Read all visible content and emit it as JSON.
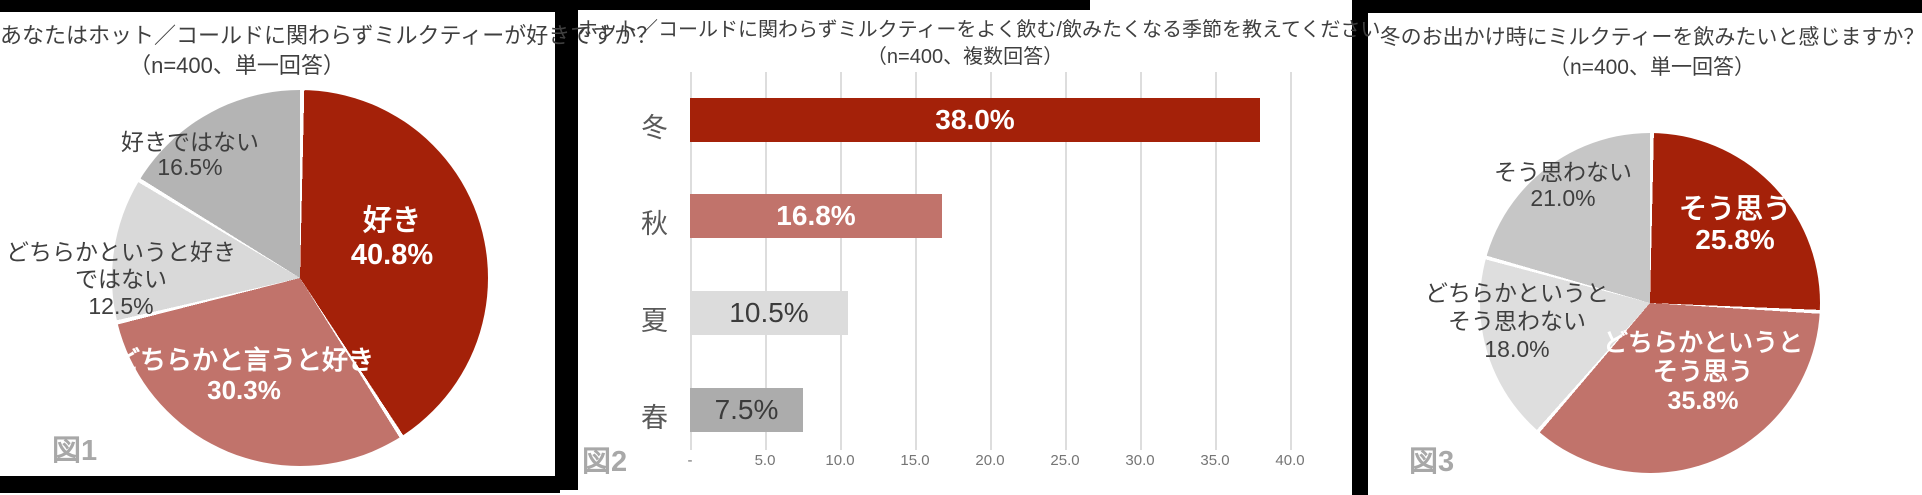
{
  "page": {
    "background": "#FFFFFF",
    "frame_color": "#000000"
  },
  "colors": {
    "dark_red": "#A42109",
    "salmon": "#C1736B",
    "light_gray": "#D9D9D9",
    "mid_gray": "#B4B4B4",
    "title_text": "#3F3F3F",
    "axis_text": "#757575",
    "figure_label_gray": "#A8A8A8",
    "separator": "#FFFFFF"
  },
  "chart_data": [
    {
      "type": "pie",
      "title": "あなたはホット／コールドに関わらずミルクティーが好きですか？",
      "subtitle": "（n=400、単一回答）",
      "figure_label": "図1",
      "start_angle": "12-oclock",
      "direction": "clockwise",
      "slices": [
        {
          "label": "好き",
          "value": 40.8,
          "text": "40.8%",
          "color": "#A42109",
          "label_color": "#FFFFFF"
        },
        {
          "label": "どちらかと言うと好き",
          "value": 30.3,
          "text": "30.3%",
          "color": "#C1736B",
          "label_color": "#FFFFFF"
        },
        {
          "label": "どちらかというと好きではない",
          "value": 12.5,
          "text": "12.5%",
          "color": "#D9D9D9",
          "label_color": "#3F3F3F"
        },
        {
          "label": "好きではない",
          "value": 16.5,
          "text": "16.5%",
          "color": "#B4B4B4",
          "label_color": "#3F3F3F"
        }
      ]
    },
    {
      "type": "bar",
      "orientation": "horizontal",
      "title": "ホット／コールドに関わらずミルクティーをよく飲む/飲みたくなる季節を教えてください",
      "subtitle": "（n=400、複数回答）",
      "figure_label": "図2",
      "xlim": [
        0,
        40
      ],
      "grid": true,
      "x_ticks": [
        "-",
        "5.0",
        "10.0",
        "15.0",
        "20.0",
        "25.0",
        "30.0",
        "35.0",
        "40.0"
      ],
      "slices": [
        {
          "category": "冬",
          "value": 38.0,
          "text": "38.0%",
          "color": "#A42109",
          "text_color": "#FFFFFF",
          "text_bold": true
        },
        {
          "category": "秋",
          "value": 16.8,
          "text": "16.8%",
          "color": "#C1736B",
          "text_color": "#FFFFFF",
          "text_bold": true
        },
        {
          "category": "夏",
          "value": 10.5,
          "text": "10.5%",
          "color": "#DCDCDC",
          "text_color": "#3B3B3B",
          "text_bold": false
        },
        {
          "category": "春",
          "value": 7.5,
          "text": "7.5%",
          "color": "#ACACAC",
          "text_color": "#3B3B3B",
          "text_bold": false
        }
      ]
    },
    {
      "type": "pie",
      "title": "冬のお出かけ時にミルクティーを飲みたいと感じますか？",
      "subtitle": "（n=400、単一回答）",
      "figure_label": "図3",
      "start_angle": "12-oclock",
      "direction": "clockwise",
      "slices": [
        {
          "label": "そう思う",
          "label_lines": [
            "そう思う"
          ],
          "value": 25.8,
          "text": "25.8%",
          "color": "#A42109",
          "label_color": "#FFFFFF"
        },
        {
          "label": "どちらかというとそう思う",
          "label_lines": [
            "どちらかというと",
            "そう思う"
          ],
          "value": 35.8,
          "text": "35.8%",
          "color": "#C1736B",
          "label_color": "#FFFFFF"
        },
        {
          "label": "どちらかというとそう思わない",
          "label_lines": [
            "どちらかというと",
            "そう思わない"
          ],
          "value": 18.0,
          "text": "18.0%",
          "color": "#DEDEDE",
          "label_color": "#3F3F3F"
        },
        {
          "label": "そう思わない",
          "label_lines": [
            "そう思わない"
          ],
          "value": 21.0,
          "text": "21.0%",
          "color": "#C6C6C6",
          "label_color": "#3F3F3F"
        }
      ]
    }
  ]
}
